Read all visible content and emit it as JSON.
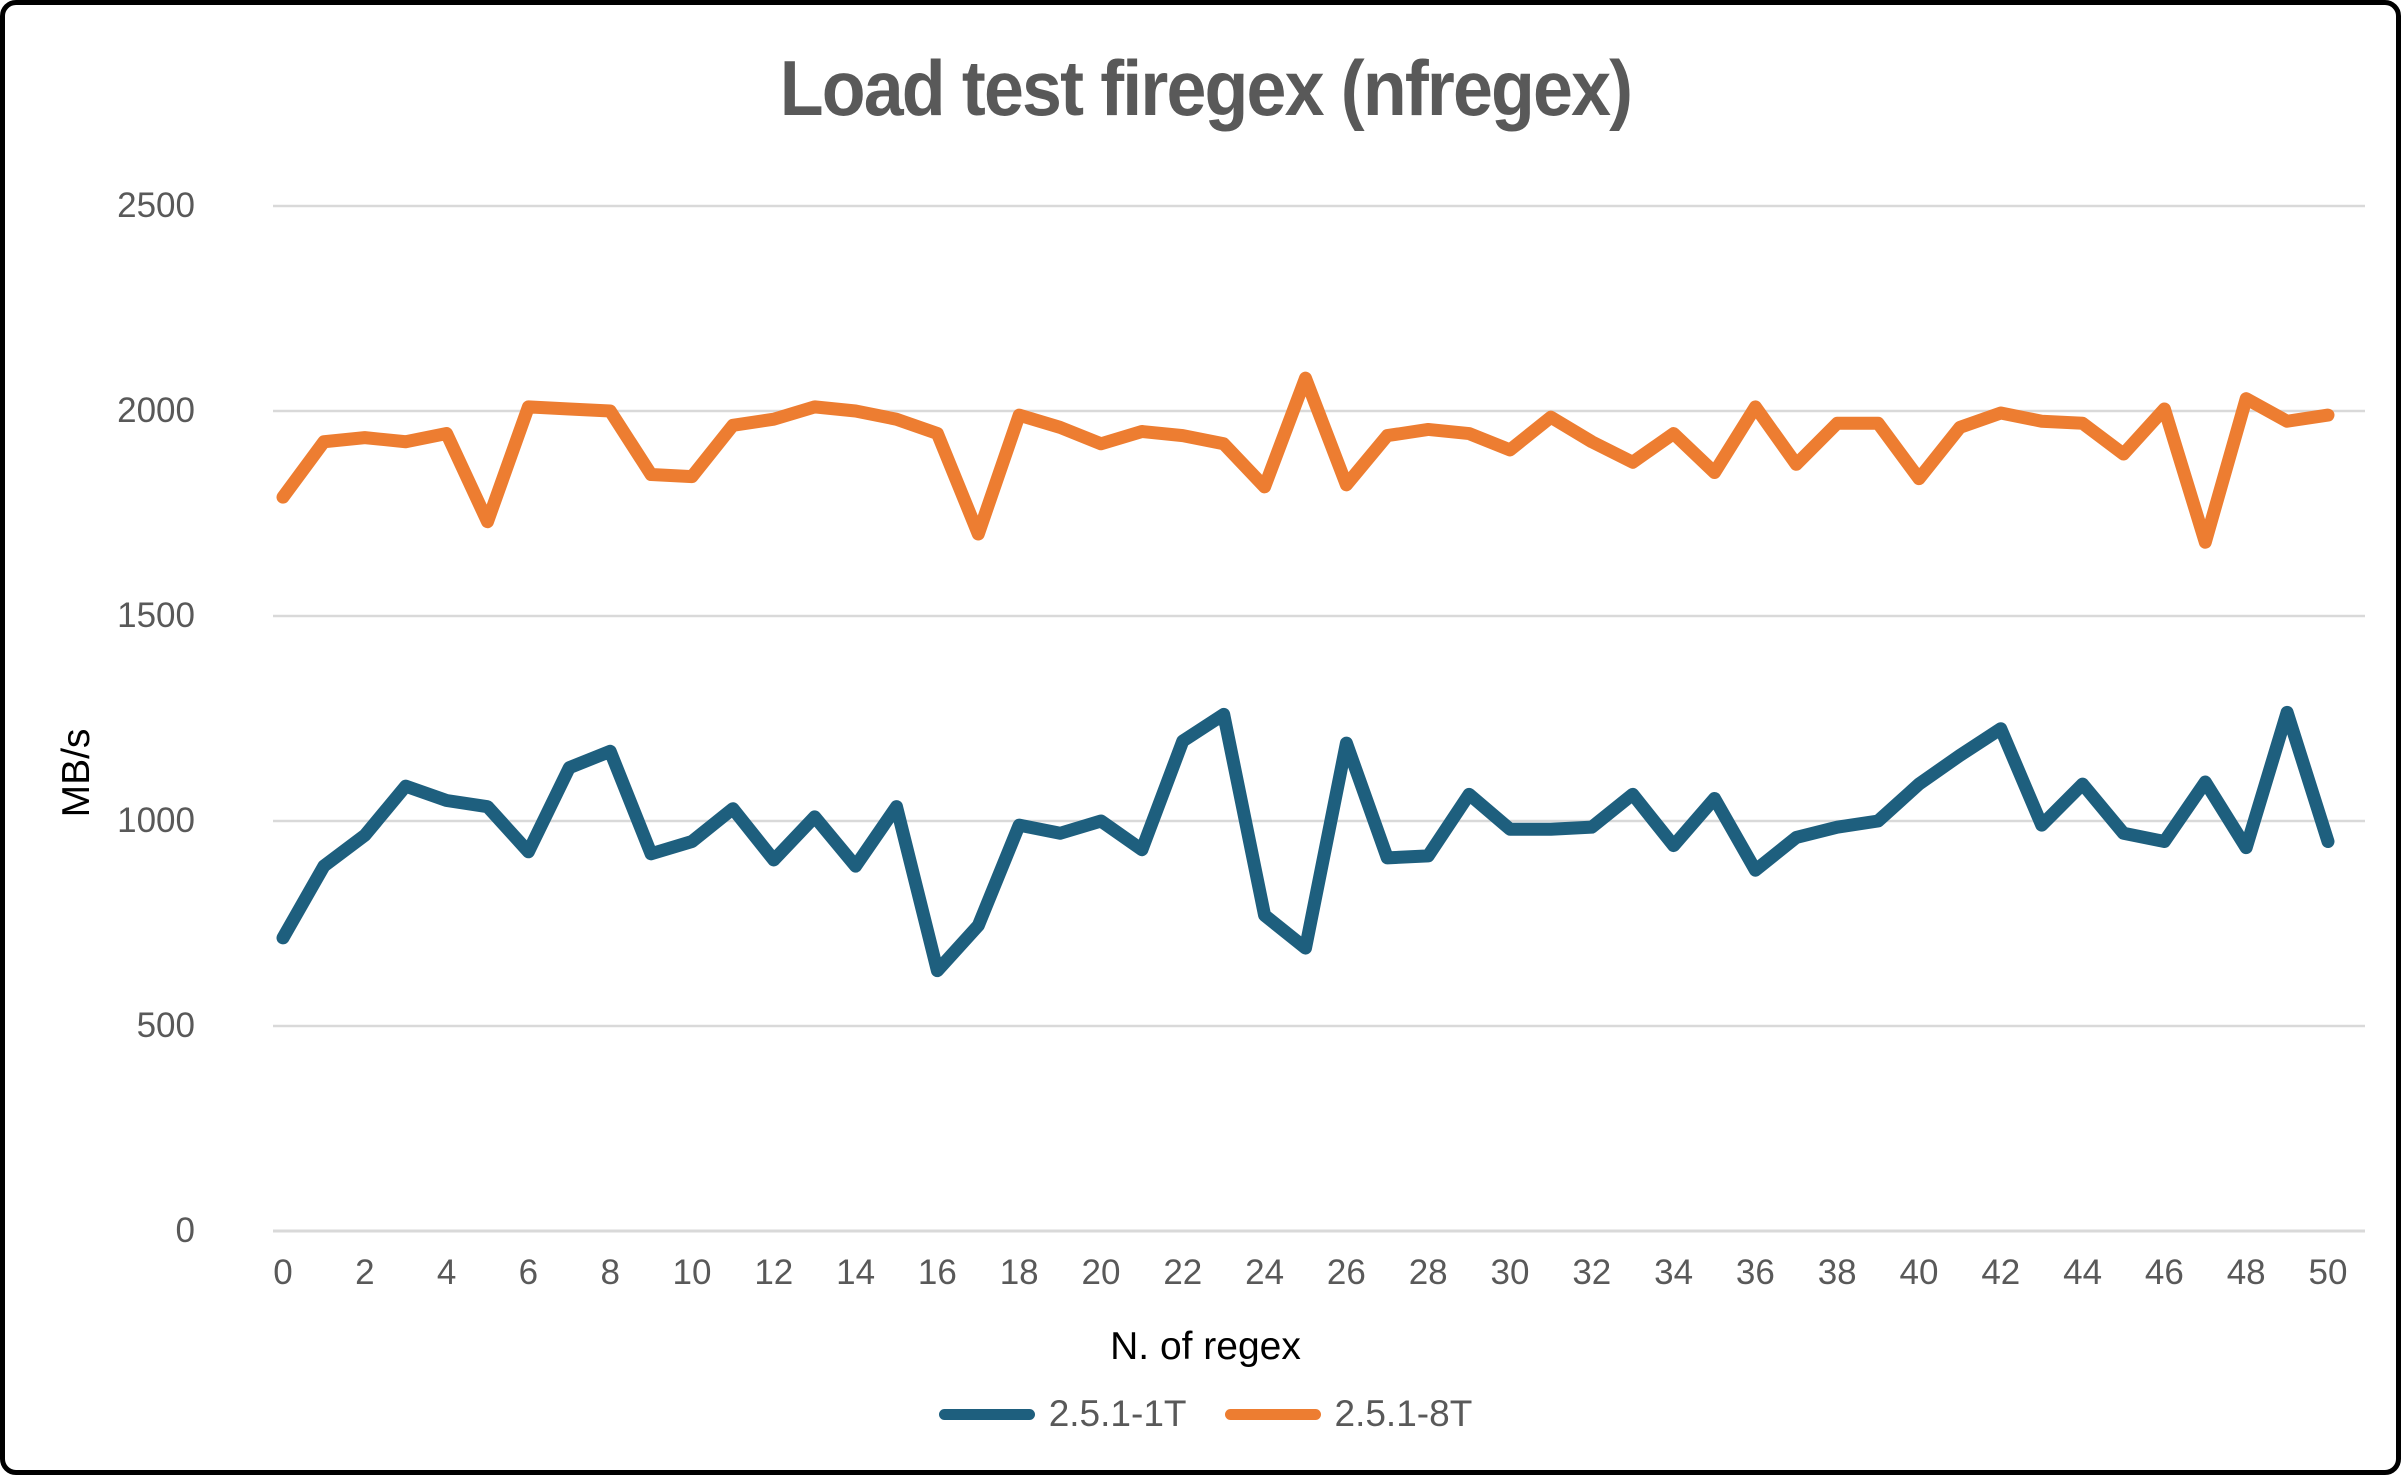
{
  "title": "Load test firegex (nfregex)",
  "axes": {
    "x_title": "N. of regex",
    "y_title": "MB/s"
  },
  "legend": {
    "items": [
      {
        "label": "2.5.1-1T",
        "color": "#1E5F7E"
      },
      {
        "label": "2.5.1-8T",
        "color": "#ED7D31"
      }
    ]
  },
  "colors": {
    "series_1t": "#1E5F7E",
    "series_8t": "#ED7D31",
    "gridline": "#D9D9D9",
    "tick_text": "#595959",
    "title_text": "#595959",
    "axis_title_text": "#000000"
  },
  "chart_data": {
    "type": "line",
    "title": "Load test firegex (nfregex)",
    "xlabel": "N. of regex",
    "ylabel": "MB/s",
    "xlim": [
      0,
      50
    ],
    "ylim": [
      0,
      2500
    ],
    "grid": true,
    "legend_position": "bottom",
    "yticks": [
      0,
      500,
      1000,
      1500,
      2000,
      2500
    ],
    "xticks": [
      0,
      2,
      4,
      6,
      8,
      10,
      12,
      14,
      16,
      18,
      20,
      22,
      24,
      26,
      28,
      30,
      32,
      34,
      36,
      38,
      40,
      42,
      44,
      46,
      48,
      50
    ],
    "x": [
      0,
      1,
      2,
      3,
      4,
      5,
      6,
      7,
      8,
      9,
      10,
      11,
      12,
      13,
      14,
      15,
      16,
      17,
      18,
      19,
      20,
      21,
      22,
      23,
      24,
      25,
      26,
      27,
      28,
      29,
      30,
      31,
      32,
      33,
      34,
      35,
      36,
      37,
      38,
      39,
      40,
      41,
      42,
      43,
      44,
      45,
      46,
      47,
      48,
      49,
      50
    ],
    "series": [
      {
        "name": "2.5.1-1T",
        "color": "#1E5F7E",
        "values": [
          715,
          890,
          965,
          1085,
          1050,
          1035,
          925,
          1130,
          1170,
          920,
          950,
          1030,
          905,
          1010,
          890,
          1035,
          635,
          745,
          990,
          970,
          1000,
          930,
          1195,
          1260,
          770,
          690,
          1190,
          910,
          915,
          1065,
          980,
          980,
          985,
          1065,
          940,
          1055,
          880,
          960,
          985,
          1000,
          1090,
          1160,
          1225,
          990,
          1090,
          970,
          950,
          1095,
          935,
          1265,
          950
        ]
      },
      {
        "name": "2.5.1-8T",
        "color": "#ED7D31",
        "values": [
          1790,
          1925,
          1935,
          1925,
          1945,
          1730,
          2010,
          2005,
          2000,
          1845,
          1840,
          1965,
          1980,
          2010,
          2000,
          1980,
          1945,
          1700,
          1990,
          1960,
          1920,
          1950,
          1940,
          1920,
          1815,
          2080,
          1820,
          1940,
          1955,
          1945,
          1905,
          1985,
          1925,
          1875,
          1945,
          1850,
          2010,
          1870,
          1970,
          1970,
          1835,
          1960,
          1995,
          1975,
          1970,
          1895,
          2005,
          1680,
          2030,
          1975,
          1990
        ]
      }
    ]
  }
}
